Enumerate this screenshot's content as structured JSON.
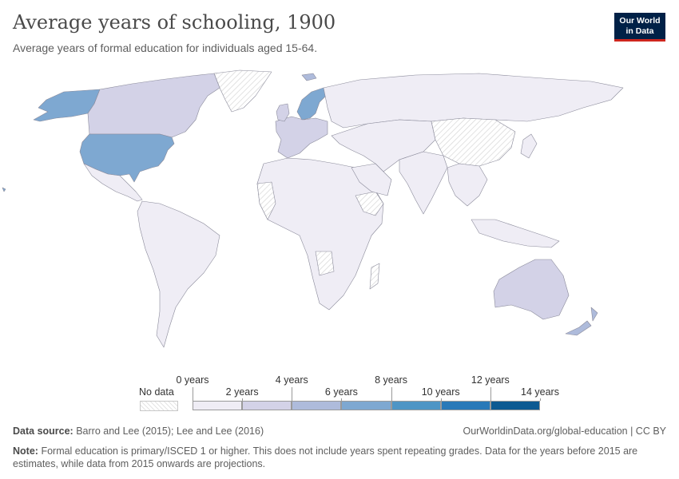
{
  "header": {
    "title": "Average years of schooling, 1900",
    "subtitle": "Average years of formal education for individuals aged 15-64.",
    "logo_line1": "Our World",
    "logo_line2": "in Data"
  },
  "map": {
    "fill_colors": {
      "0-2": "#efedf5",
      "2-4": "#d3d2e7",
      "4-6": "#aebbdb",
      "6-8": "#7ea8d1",
      "8-10": "#4e95c5",
      "10-12": "#2979b8",
      "12-14": "#0d5a92",
      "no_data": "hatched"
    },
    "highlighted_regions": [
      {
        "name": "United States",
        "bin": "6-8"
      },
      {
        "name": "Alaska",
        "bin": "6-8"
      },
      {
        "name": "Canada",
        "bin": "2-4"
      },
      {
        "name": "Australia",
        "bin": "2-4"
      },
      {
        "name": "New Zealand",
        "bin": "4-6"
      },
      {
        "name": "Norway",
        "bin": "4-6"
      },
      {
        "name": "Sweden",
        "bin": "4-6"
      },
      {
        "name": "Western Europe",
        "bin": "2-4"
      },
      {
        "name": "Svalbard",
        "bin": "4-6"
      }
    ]
  },
  "legend": {
    "no_data_label": "No data",
    "ticks": [
      "0 years",
      "2 years",
      "4 years",
      "6 years",
      "8 years",
      "10 years",
      "12 years",
      "14 years"
    ],
    "bins": [
      {
        "from": 0,
        "to": 2,
        "color": "#efedf5"
      },
      {
        "from": 2,
        "to": 4,
        "color": "#d3d2e7"
      },
      {
        "from": 4,
        "to": 6,
        "color": "#aebbdb"
      },
      {
        "from": 6,
        "to": 8,
        "color": "#7ea8d1"
      },
      {
        "from": 8,
        "to": 10,
        "color": "#4e95c5"
      },
      {
        "from": 10,
        "to": 12,
        "color": "#2979b8"
      },
      {
        "from": 12,
        "to": 14,
        "color": "#0d5a92"
      }
    ]
  },
  "footer": {
    "source_label": "Data source:",
    "source_text": "Barro and Lee (2015); Lee and Lee (2016)",
    "url": "OurWorldinData.org/global-education | CC BY",
    "note_label": "Note:",
    "note_text": "Formal education is primary/ISCED 1 or higher. This does not include years spent repeating grades. Data for the years before 2015 are estimates, while data from 2015 onwards are projections."
  }
}
